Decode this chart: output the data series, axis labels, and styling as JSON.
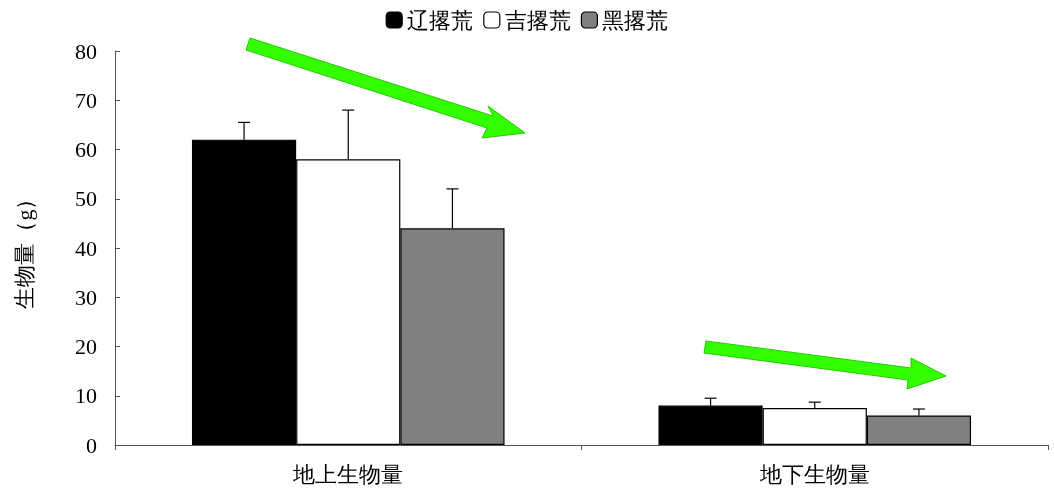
{
  "chart_data": {
    "type": "bar",
    "ylabel": "生物量（g）",
    "categories": [
      "地上生物量",
      "地下生物量"
    ],
    "series": [
      {
        "name": "辽撂荒",
        "color": "#000000",
        "values": [
          62,
          8
        ],
        "errors": [
          [
            62,
            65.5
          ],
          [
            8,
            9.5
          ]
        ]
      },
      {
        "name": "吉撂荒",
        "color": "#ffffff",
        "values": [
          58,
          7.5
        ],
        "errors": [
          [
            58,
            68
          ],
          [
            7.5,
            8.7
          ]
        ]
      },
      {
        "name": "黑撂荒",
        "color": "#808080",
        "values": [
          44,
          6
        ],
        "errors": [
          [
            44,
            52
          ],
          [
            6,
            7.3
          ]
        ]
      }
    ],
    "ylim": [
      0,
      80
    ],
    "yticks": [
      0,
      10,
      20,
      30,
      40,
      50,
      60,
      70,
      80
    ],
    "grid": false,
    "legend": "top"
  }
}
